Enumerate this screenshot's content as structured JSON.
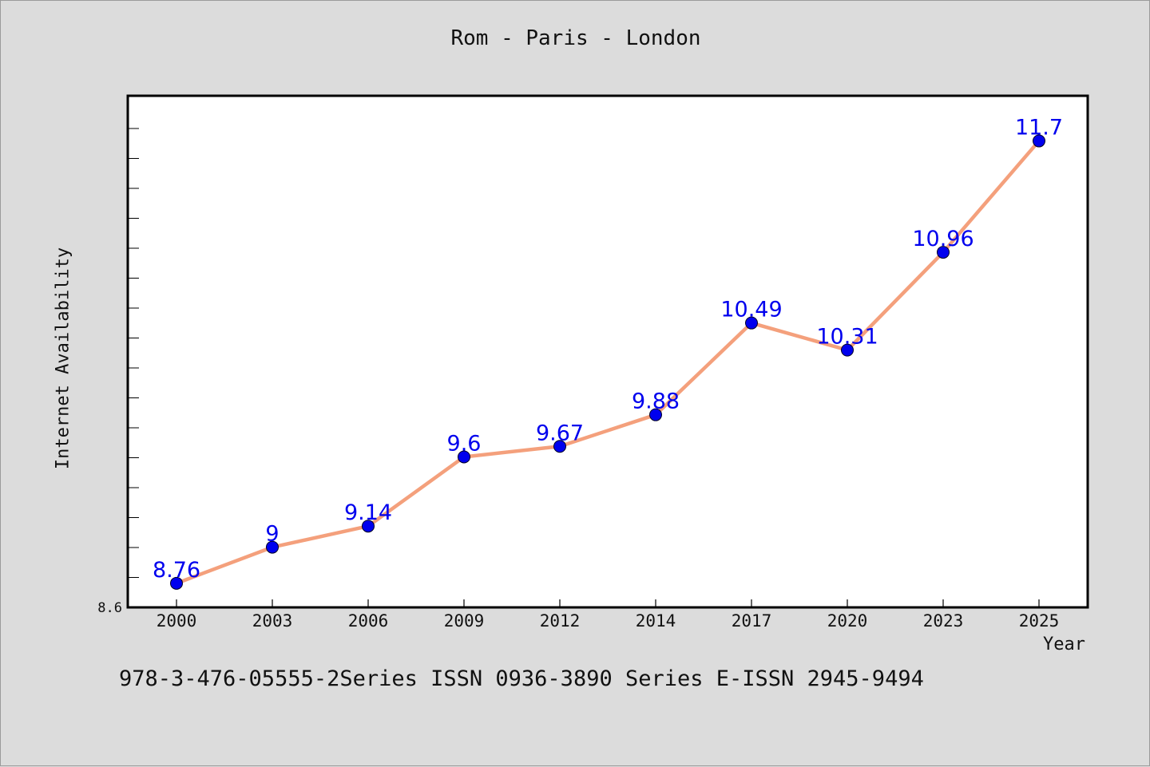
{
  "chart_data": {
    "type": "line",
    "title": "Rom - Paris - London",
    "xlabel": "Year",
    "ylabel": "Internet Availability",
    "x": [
      "2000",
      "2003",
      "2006",
      "2009",
      "2012",
      "2014",
      "2017",
      "2020",
      "2023",
      "2025"
    ],
    "series": [
      {
        "values": [
          8.76,
          9,
          9.14,
          9.6,
          9.67,
          9.88,
          10.49,
          10.31,
          10.96,
          11.7
        ],
        "data_labels": [
          "8.76",
          "9",
          "9.14",
          "9.6",
          "9.67",
          "9.88",
          "10.49",
          "10.31",
          "10.96",
          "11.7"
        ]
      }
    ],
    "y_tick_label": "8.6",
    "ylim": [
      8.6,
      12.0
    ],
    "grid": false,
    "line_color": "#f4a07c",
    "marker_color": "#0000ee",
    "label_color": "#0000ee"
  },
  "footer": "978-3-476-05555-2Series ISSN 0936-3890 Series E-ISSN 2945-9494"
}
